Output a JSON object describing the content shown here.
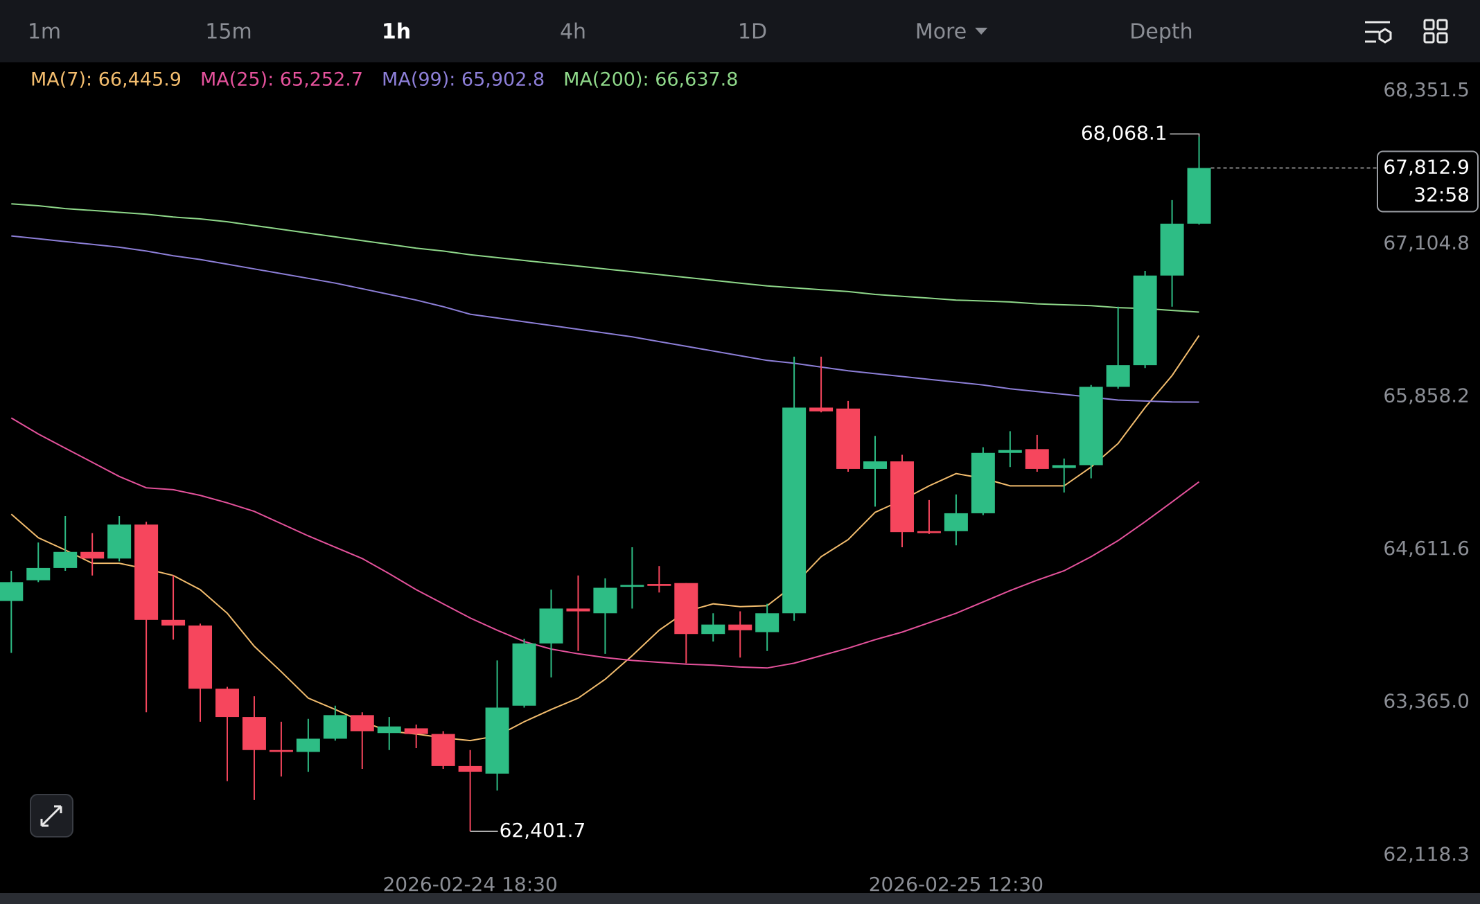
{
  "toolbar": {
    "tabs": [
      "1m",
      "15m",
      "1h",
      "4h",
      "1D",
      "More",
      "Depth"
    ],
    "active": 2
  },
  "chart_data": {
    "type": "candlestick",
    "categories": [
      null,
      null,
      null,
      null,
      null,
      null,
      null,
      null,
      null,
      null,
      null,
      null,
      null,
      null,
      null,
      null,
      null,
      "2026-02-24 18:30",
      null,
      null,
      null,
      null,
      null,
      null,
      null,
      null,
      null,
      null,
      null,
      null,
      null,
      null,
      null,
      null,
      null,
      "2026-02-25 12:30",
      null,
      null,
      null,
      null,
      null,
      null,
      null,
      null,
      null
    ],
    "open": [
      64280.8,
      64450.1,
      64550.2,
      64681.0,
      64627.1,
      64904.1,
      64126.9,
      64080.8,
      63565.2,
      63334.4,
      63065.0,
      63049.6,
      63157.4,
      63349.7,
      63203.6,
      63242.0,
      63195.8,
      62934.2,
      62872.7,
      63426.7,
      63934.6,
      64219.3,
      64180.8,
      64396.3,
      64419.4,
      64427.0,
      64011.5,
      64088.5,
      64026.9,
      64180.8,
      65858.3,
      65850.6,
      65358.1,
      65419.7,
      64850.3,
      64850.3,
      64996.5,
      65489.0,
      65519.7,
      65365.8,
      65388.9,
      66027.6,
      66204.6,
      66935.6,
      67358.8
    ],
    "high": [
      64527.1,
      64757.9,
      64973.4,
      64834.9,
      64973.4,
      64927.2,
      64488.6,
      64096.2,
      63580.6,
      63503.6,
      63295.9,
      63319.0,
      63426.7,
      63372.8,
      63334.4,
      63272.8,
      63218.9,
      63065.0,
      63796.1,
      63973.0,
      64373.2,
      64488.6,
      64465.5,
      64719.5,
      64565.6,
      64427.0,
      64180.8,
      64196.2,
      64257.8,
      66273.8,
      66273.8,
      65912.2,
      65627.5,
      65473.6,
      65104.2,
      65150.4,
      65535.1,
      65665.9,
      65635.2,
      65442.8,
      66043.0,
      66681.7,
      66974.1,
      67551.2,
      68068.1
    ],
    "low": [
      63857.6,
      64434.7,
      64527.1,
      64488.6,
      64604.0,
      63372.8,
      63965.3,
      63295.9,
      62811.1,
      62657.2,
      62849.6,
      62888.0,
      63142.0,
      62911.1,
      63065.0,
      63080.4,
      62911.1,
      62401.7,
      62734.1,
      63411.3,
      63657.5,
      63873.0,
      63849.9,
      64219.3,
      64350.1,
      63773.0,
      63950.0,
      63819.1,
      63873.0,
      64119.2,
      65819.8,
      65335.1,
      65050.3,
      64719.5,
      64827.2,
      64734.8,
      64981.1,
      65373.5,
      65335.1,
      65165.8,
      65281.2,
      66012.2,
      66181.5,
      66681.7,
      67351.1
    ],
    "close": [
      64434.7,
      64550.2,
      64681.0,
      64627.1,
      64904.1,
      64126.9,
      64080.8,
      63565.2,
      63334.4,
      63065.0,
      63049.6,
      63157.4,
      63349.7,
      63218.9,
      63257.4,
      63195.8,
      62934.2,
      62888.0,
      63411.3,
      63934.6,
      64219.3,
      64196.2,
      64388.6,
      64411.7,
      64404.0,
      64011.5,
      64088.5,
      64042.3,
      64180.8,
      65858.3,
      65827.5,
      65358.1,
      65419.7,
      64842.6,
      64834.9,
      64996.5,
      65489.0,
      65512.0,
      65358.1,
      65388.9,
      66027.6,
      66204.6,
      66935.6,
      67358.8,
      67812.9
    ],
    "high_labels": [
      null,
      null,
      null,
      null,
      null,
      null,
      null,
      null,
      null,
      null,
      null,
      null,
      null,
      null,
      null,
      null,
      null,
      null,
      null,
      null,
      null,
      null,
      null,
      null,
      null,
      null,
      null,
      null,
      null,
      null,
      null,
      null,
      null,
      null,
      null,
      null,
      null,
      null,
      null,
      null,
      null,
      null,
      null,
      null,
      "68,068.1"
    ],
    "low_labels": [
      null,
      null,
      null,
      null,
      null,
      null,
      null,
      null,
      null,
      null,
      null,
      null,
      null,
      null,
      null,
      null,
      null,
      "62,401.7",
      null,
      null,
      null,
      null,
      null,
      null,
      null,
      null,
      null,
      null,
      null,
      null,
      null,
      null,
      null,
      null,
      null,
      null,
      null,
      null,
      null,
      null,
      null,
      null,
      null,
      null,
      null
    ],
    "last_price": {
      "label": "67,812.9",
      "countdown": "32:58"
    },
    "up_color": "#2ebd85",
    "down_color": "#f6465d",
    "series": [
      {
        "name": "MA(7): 66,445.9",
        "color": "#f3bd6e",
        "values": [
          64988.8,
          64796.4,
          64696.4,
          64588.7,
          64588.7,
          64542.5,
          64488.6,
          64373.2,
          64180.8,
          63911.5,
          63703.8,
          63488.3,
          63396.0,
          63295.9,
          63219.0,
          63195.9,
          63165.1,
          63142.0,
          63180.5,
          63295.9,
          63396.0,
          63488.3,
          63642.2,
          63834.6,
          64042.3,
          64196.2,
          64257.8,
          64234.7,
          64242.4,
          64411.7,
          64642.5,
          64781.1,
          65004.2,
          65104.2,
          65219.7,
          65319.7,
          65281.2,
          65219.7,
          65219.7,
          65219.7,
          65373.6,
          65565.9,
          65858.4,
          66120.0,
          66445.9
        ]
      },
      {
        "name": "MA(25): 65,252.7",
        "color": "#e5529c",
        "values": [
          65773.7,
          65642.9,
          65527.5,
          65412.0,
          65296.6,
          65204.3,
          65188.9,
          65142.7,
          65081.2,
          65011.9,
          64911.9,
          64811.8,
          64719.5,
          64627.2,
          64504.0,
          64373.2,
          64257.8,
          64142.4,
          64042.3,
          63950.0,
          63888.4,
          63850.0,
          63819.2,
          63796.1,
          63780.7,
          63765.3,
          63757.6,
          63742.2,
          63734.5,
          63773.0,
          63834.6,
          63896.1,
          63965.4,
          64026.9,
          64103.9,
          64180.8,
          64273.2,
          64365.5,
          64450.2,
          64527.1,
          64642.5,
          64773.4,
          64927.3,
          65088.9,
          65252.7
        ]
      },
      {
        "name": "MA(99): 65,902.8",
        "color": "#8d7fd8",
        "values": [
          67258.9,
          67235.8,
          67212.7,
          67189.6,
          67166.5,
          67135.7,
          67097.3,
          67066.5,
          67028.0,
          66989.5,
          66951.0,
          66912.6,
          66874.1,
          66827.9,
          66781.8,
          66735.6,
          66681.7,
          66620.2,
          66589.4,
          66558.6,
          66527.8,
          66497.0,
          66466.3,
          66435.5,
          66397.0,
          66358.5,
          66320.1,
          66281.6,
          66243.1,
          66220.0,
          66189.2,
          66158.5,
          66135.4,
          66112.3,
          66089.2,
          66066.1,
          66043.0,
          66012.3,
          65989.2,
          65966.1,
          65943.0,
          65919.9,
          65912.2,
          65904.5,
          65902.8
        ]
      },
      {
        "name": "MA(200): 66,637.8",
        "color": "#8fd88a",
        "values": [
          67520.5,
          67505.1,
          67482.0,
          67466.6,
          67451.2,
          67435.8,
          67412.7,
          67397.4,
          67374.3,
          67343.5,
          67312.7,
          67281.9,
          67251.2,
          67220.4,
          67189.6,
          67158.8,
          67135.7,
          67104.9,
          67081.9,
          67058.8,
          67035.7,
          67012.6,
          66989.5,
          66966.4,
          66943.4,
          66920.3,
          66897.2,
          66874.1,
          66851.0,
          66835.6,
          66820.2,
          66804.8,
          66781.8,
          66766.4,
          66751.0,
          66735.6,
          66727.9,
          66720.2,
          66704.8,
          66697.1,
          66689.4,
          66674.0,
          66666.3,
          66651.0,
          66637.8
        ]
      }
    ],
    "ylim": [
      61910.8,
      68674.7
    ],
    "yticks": [
      {
        "value": 68351.5,
        "label": "68,351.5"
      },
      {
        "value": 67104.8,
        "label": "67,104.8"
      },
      {
        "value": 65858.2,
        "label": "65,858.2"
      },
      {
        "value": 64611.6,
        "label": "64,611.6"
      },
      {
        "value": 63365.0,
        "label": "63,365.0"
      },
      {
        "value": 62118.3,
        "label": "62,118.3"
      }
    ]
  }
}
